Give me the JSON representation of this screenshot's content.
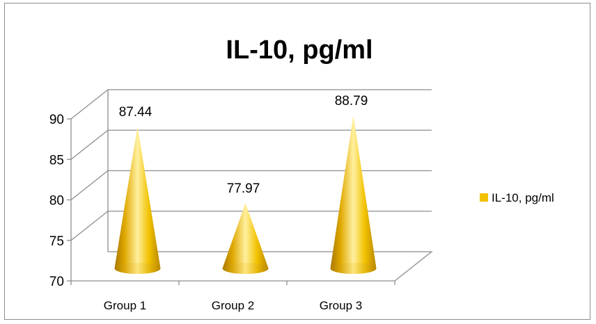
{
  "chart_data": {
    "type": "bar",
    "style": "3d-cone",
    "title": "IL-10, pg/ml",
    "categories": [
      "Group 1",
      "Group 2",
      "Group 3"
    ],
    "series": [
      {
        "name": "IL-10, pg/ml",
        "values": [
          87.44,
          77.97,
          88.79
        ]
      }
    ],
    "data_labels": [
      "87.44",
      "77.97",
      "88.79"
    ],
    "ylim": [
      70,
      90
    ],
    "yticks": [
      70,
      75,
      80,
      85,
      90
    ],
    "grid": true,
    "legend": "right",
    "colors": {
      "series": "#f2c200",
      "series_dark": "#a87800",
      "series_light": "#fff0a0",
      "grid": "#8c8c8c"
    }
  }
}
